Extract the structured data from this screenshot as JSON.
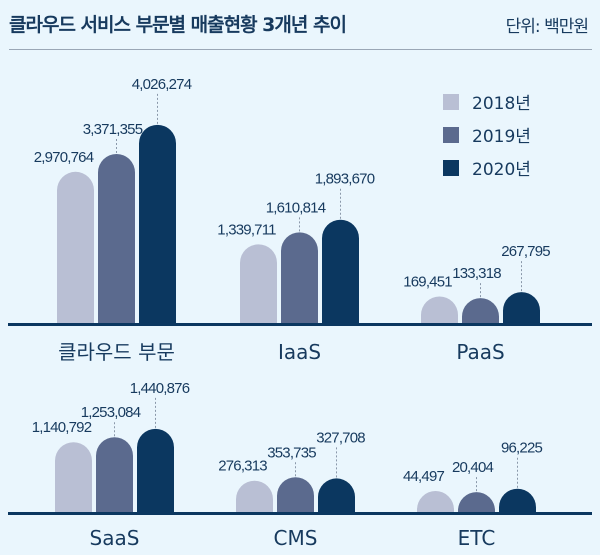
{
  "chart_data": {
    "type": "bar",
    "title": "클라우드 서비스 부문별 매출현황 3개년 추이",
    "unit": "단위: 백만원",
    "legend": [
      "2018년",
      "2019년",
      "2020년"
    ],
    "legend_position": "top-right",
    "colors": [
      "#b9bfd4",
      "#5b6a8e",
      "#0b3760"
    ],
    "categories": [
      "클라우드 부문",
      "IaaS",
      "PaaS",
      "SaaS",
      "CMS",
      "ETC"
    ],
    "series": [
      {
        "name": "2018년",
        "values": [
          2970764,
          1339711,
          169451,
          1140792,
          276313,
          44497
        ],
        "labels": [
          "2,970,764",
          "1,339,711",
          "169,451",
          "1,140,792",
          "276,313",
          "44,497"
        ]
      },
      {
        "name": "2019년",
        "values": [
          3371355,
          1610814,
          133318,
          1253084,
          353735,
          20404
        ],
        "labels": [
          "3,371,355",
          "1,610,814",
          "133,318",
          "1,253,084",
          "353,735",
          "20,404"
        ]
      },
      {
        "name": "2020년",
        "values": [
          4026274,
          1893670,
          267795,
          1440876,
          327708,
          96225
        ],
        "labels": [
          "4,026,274",
          "1,893,670",
          "267,795",
          "1,440,876",
          "327,708",
          "96,225"
        ]
      }
    ],
    "grid": false
  }
}
